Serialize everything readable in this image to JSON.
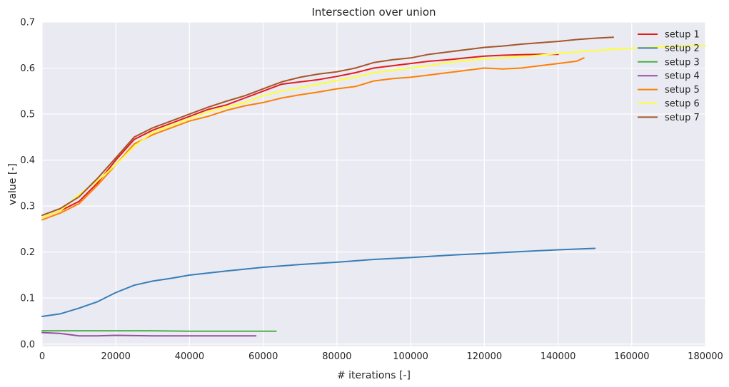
{
  "chart_data": {
    "type": "line",
    "title": "Intersection over union",
    "xlabel": "# iterations [-]",
    "ylabel": "value [-]",
    "xlim": [
      0,
      180000
    ],
    "ylim": [
      -0.005,
      0.7
    ],
    "xticks": [
      0,
      20000,
      40000,
      60000,
      80000,
      100000,
      120000,
      140000,
      160000,
      180000
    ],
    "yticks": [
      0.0,
      0.1,
      0.2,
      0.3,
      0.4,
      0.5,
      0.6,
      0.7
    ],
    "xtick_labels": [
      "0",
      "20000",
      "40000",
      "60000",
      "80000",
      "100000",
      "120000",
      "140000",
      "160000",
      "180000"
    ],
    "ytick_labels": [
      "0.0",
      "0.1",
      "0.2",
      "0.3",
      "0.4",
      "0.5",
      "0.6",
      "0.7"
    ],
    "grid": true,
    "legend_position": "top-right",
    "series": [
      {
        "name": "setup 1",
        "color": "#e41a1c",
        "x": [
          0,
          5000,
          10000,
          15000,
          20000,
          25000,
          30000,
          35000,
          40000,
          45000,
          50000,
          55000,
          60000,
          65000,
          70000,
          75000,
          80000,
          85000,
          90000,
          95000,
          100000,
          105000,
          110000,
          115000,
          120000,
          125000,
          130000,
          135000,
          140000
        ],
        "y": [
          0.275,
          0.29,
          0.31,
          0.35,
          0.4,
          0.445,
          0.465,
          0.48,
          0.495,
          0.51,
          0.52,
          0.535,
          0.55,
          0.565,
          0.57,
          0.575,
          0.582,
          0.59,
          0.6,
          0.605,
          0.61,
          0.615,
          0.618,
          0.622,
          0.626,
          0.628,
          0.629,
          0.63,
          0.63
        ]
      },
      {
        "name": "setup 2",
        "color": "#377eb8",
        "x": [
          0,
          5000,
          10000,
          15000,
          20000,
          25000,
          30000,
          35000,
          40000,
          50000,
          60000,
          70000,
          80000,
          90000,
          100000,
          110000,
          120000,
          130000,
          140000,
          150000
        ],
        "y": [
          0.06,
          0.066,
          0.078,
          0.092,
          0.112,
          0.128,
          0.137,
          0.143,
          0.15,
          0.159,
          0.167,
          0.173,
          0.178,
          0.184,
          0.188,
          0.193,
          0.197,
          0.201,
          0.205,
          0.208
        ]
      },
      {
        "name": "setup 3",
        "color": "#4daf4a",
        "x": [
          0,
          10000,
          20000,
          30000,
          40000,
          50000,
          60000,
          63500
        ],
        "y": [
          0.029,
          0.029,
          0.029,
          0.029,
          0.028,
          0.028,
          0.028,
          0.028
        ]
      },
      {
        "name": "setup 4",
        "color": "#984ea3",
        "x": [
          0,
          5000,
          10000,
          15000,
          20000,
          30000,
          40000,
          50000,
          58000
        ],
        "y": [
          0.025,
          0.023,
          0.018,
          0.018,
          0.019,
          0.018,
          0.018,
          0.018,
          0.018
        ]
      },
      {
        "name": "setup 5",
        "color": "#ff7f00",
        "x": [
          0,
          5000,
          10000,
          15000,
          20000,
          25000,
          30000,
          35000,
          40000,
          45000,
          50000,
          55000,
          60000,
          65000,
          70000,
          75000,
          80000,
          85000,
          90000,
          95000,
          100000,
          105000,
          110000,
          115000,
          120000,
          125000,
          130000,
          135000,
          140000,
          145000,
          147000
        ],
        "y": [
          0.27,
          0.285,
          0.305,
          0.345,
          0.39,
          0.435,
          0.455,
          0.47,
          0.485,
          0.495,
          0.508,
          0.518,
          0.525,
          0.535,
          0.542,
          0.548,
          0.555,
          0.56,
          0.572,
          0.577,
          0.58,
          0.585,
          0.59,
          0.595,
          0.6,
          0.598,
          0.6,
          0.605,
          0.61,
          0.615,
          0.622
        ]
      },
      {
        "name": "setup 6",
        "color": "#ffff33",
        "x": [
          0,
          5000,
          10000,
          15000,
          20000,
          25000,
          30000,
          35000,
          40000,
          45000,
          50000,
          55000,
          60000,
          65000,
          70000,
          75000,
          80000,
          85000,
          90000,
          95000,
          100000,
          105000,
          110000,
          115000,
          120000,
          125000,
          130000,
          135000,
          140000,
          145000,
          150000,
          155000,
          160000,
          165000,
          170000,
          175000,
          180000
        ],
        "y": [
          0.275,
          0.29,
          0.325,
          0.355,
          0.39,
          0.43,
          0.46,
          0.475,
          0.49,
          0.505,
          0.515,
          0.525,
          0.54,
          0.55,
          0.557,
          0.565,
          0.573,
          0.58,
          0.59,
          0.595,
          0.6,
          0.605,
          0.612,
          0.616,
          0.62,
          0.622,
          0.625,
          0.628,
          0.632,
          0.635,
          0.638,
          0.641,
          0.643,
          0.645,
          0.647,
          0.648,
          0.649
        ]
      },
      {
        "name": "setup 7",
        "color": "#a65628",
        "x": [
          0,
          5000,
          10000,
          15000,
          20000,
          25000,
          30000,
          35000,
          40000,
          45000,
          50000,
          55000,
          60000,
          65000,
          70000,
          75000,
          80000,
          85000,
          90000,
          95000,
          100000,
          105000,
          110000,
          115000,
          120000,
          125000,
          130000,
          135000,
          140000,
          145000,
          150000,
          155000
        ],
        "y": [
          0.28,
          0.295,
          0.32,
          0.36,
          0.405,
          0.45,
          0.47,
          0.485,
          0.5,
          0.515,
          0.528,
          0.54,
          0.555,
          0.57,
          0.58,
          0.587,
          0.592,
          0.6,
          0.612,
          0.618,
          0.622,
          0.63,
          0.635,
          0.64,
          0.645,
          0.648,
          0.652,
          0.655,
          0.658,
          0.662,
          0.665,
          0.667
        ]
      }
    ]
  }
}
